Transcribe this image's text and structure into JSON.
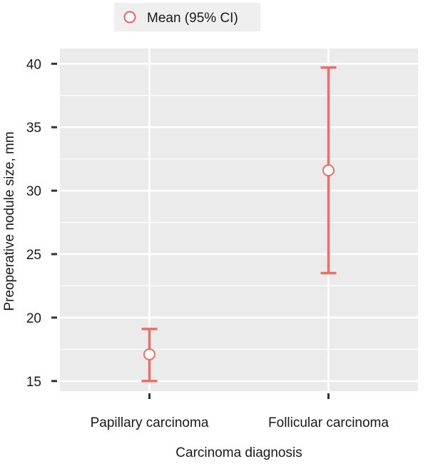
{
  "chart_data": {
    "type": "scatter",
    "title": "",
    "xlabel": "Carcinoma diagnosis",
    "ylabel": "Preoperative nodule size, mm",
    "categories": [
      "Papillary carcinoma",
      "Follicular carcinoma"
    ],
    "series": [
      {
        "name": "Mean (95% CI)",
        "mean": [
          17.1,
          31.6
        ],
        "ci_lower": [
          15.0,
          23.5
        ],
        "ci_upper": [
          19.1,
          39.7
        ]
      }
    ],
    "ylim": [
      14.2,
      41.2
    ],
    "yticks": [
      15,
      20,
      25,
      30,
      35,
      40
    ],
    "grid": true,
    "legend_position": "top",
    "colors": {
      "series": "#e8706a",
      "panel": "#ebebeb",
      "grid": "#ffffff",
      "marker_fill": "#ffffff"
    }
  }
}
